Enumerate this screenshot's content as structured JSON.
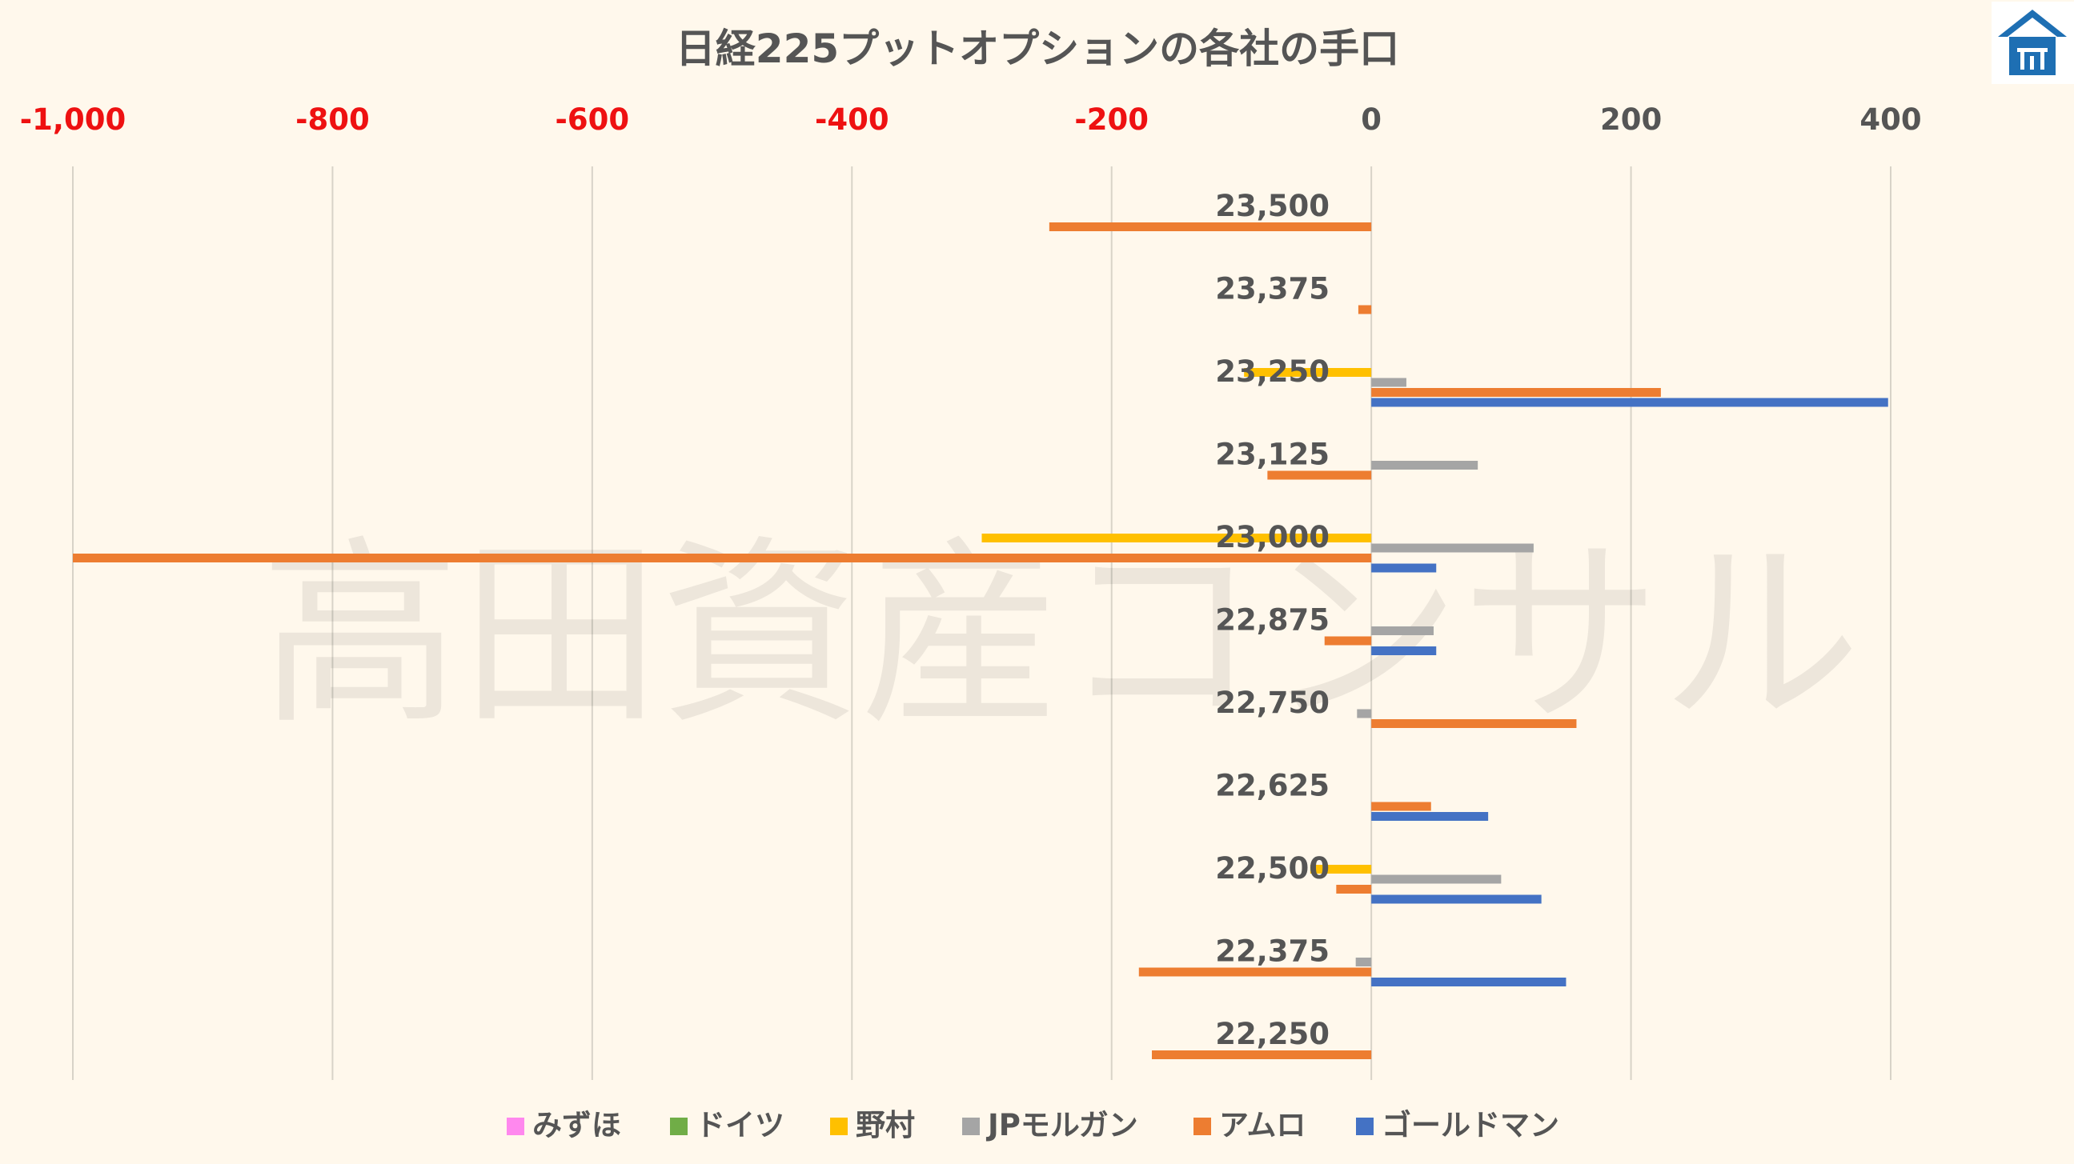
{
  "chart_data": {
    "type": "bar",
    "orientation": "horizontal",
    "title": "日経225プットオプションの各社の手口",
    "watermark": "高田資産コンサル",
    "logo": "blue-house-logo",
    "categories": [
      "23,500",
      "23,375",
      "23,250",
      "23,125",
      "23,000",
      "22,875",
      "22,750",
      "22,625",
      "22,500",
      "22,375",
      "22,250"
    ],
    "x_ticks": [
      "-1,000",
      "-800",
      "-600",
      "-400",
      "-200",
      "0",
      "200",
      "400"
    ],
    "xlim": [
      -1000,
      400
    ],
    "negative_tick_color": "#ee1111",
    "positive_tick_color": "#555555",
    "grid": true,
    "legend_position": "bottom",
    "series": [
      {
        "name": "みずほ",
        "color": "#ff88ee",
        "values": [
          0,
          0,
          0,
          0,
          0,
          0,
          0,
          0,
          0,
          0,
          0
        ]
      },
      {
        "name": "ドイツ",
        "color": "#70ad47",
        "values": [
          0,
          0,
          0,
          0,
          0,
          0,
          0,
          0,
          0,
          0,
          0
        ]
      },
      {
        "name": "野村",
        "color": "#ffc000",
        "values": [
          0,
          0,
          -98,
          0,
          -300,
          0,
          0,
          0,
          -47,
          0,
          0
        ]
      },
      {
        "name": "JPモルガン",
        "color": "#a5a5a5",
        "values": [
          0,
          0,
          27,
          82,
          125,
          48,
          -11,
          0,
          100,
          -12,
          0
        ]
      },
      {
        "name": "アムロ",
        "color": "#ed7d31",
        "values": [
          -248,
          -10,
          223,
          -80,
          -1000,
          -36,
          158,
          46,
          -27,
          -179,
          -169
        ]
      },
      {
        "name": "ゴールドマン",
        "color": "#4472c4",
        "values": [
          0,
          0,
          398,
          0,
          50,
          50,
          0,
          90,
          131,
          150,
          0
        ]
      }
    ]
  }
}
